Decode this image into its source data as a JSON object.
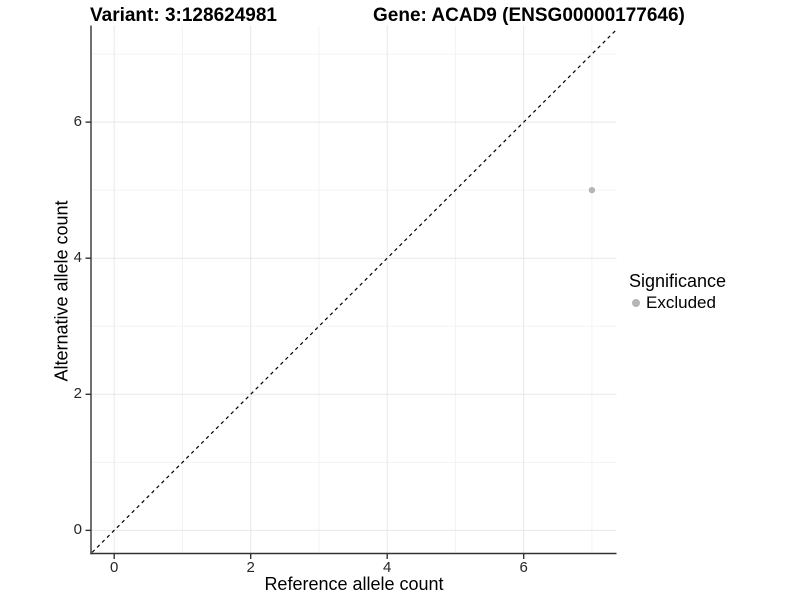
{
  "header": {
    "variant_title": "Variant: 3:128624981",
    "gene_title": "Gene: ACAD9 (ENSG00000177646)"
  },
  "axes": {
    "x": {
      "label": "Reference allele count",
      "tick_labels": [
        "0",
        "2",
        "4",
        "6"
      ]
    },
    "y": {
      "label": "Alternative allele count",
      "tick_labels": [
        "0",
        "2",
        "4",
        "6"
      ]
    }
  },
  "legend": {
    "title": "Significance",
    "items": [
      {
        "label": "Excluded",
        "color": "#b5b5b5",
        "marker": "circle-icon"
      }
    ]
  },
  "colors": {
    "background": "#ffffff",
    "grid_major": "#e8e8e8",
    "grid_minor": "#f3f3f3",
    "axis_line": "#333333",
    "tick_text": "#262626",
    "point": "#b5b5b5",
    "reference_line": "#000000"
  },
  "chart_data": {
    "type": "scatter",
    "title_left": "Variant: 3:128624981",
    "title_right": "Gene: ACAD9 (ENSG00000177646)",
    "xlabel": "Reference allele count",
    "ylabel": "Alternative allele count",
    "xlim": [
      -0.34,
      7.36
    ],
    "ylim": [
      -0.34,
      7.42
    ],
    "x_ticks": [
      0,
      2,
      4,
      6
    ],
    "y_ticks": [
      0,
      2,
      4,
      6
    ],
    "x_minor_gridlines": [
      1,
      3,
      5,
      7
    ],
    "y_minor_gridlines": [
      1,
      3,
      5,
      7
    ],
    "grid": "major+minor",
    "legend_position": "right",
    "series": [
      {
        "name": "Excluded",
        "color": "#b5b5b5",
        "points": [
          {
            "x": 7,
            "y": 5
          }
        ]
      }
    ],
    "reference_line": {
      "style": "dashed",
      "color": "#000000",
      "slope": 1,
      "intercept": 0,
      "description": "y = x identity line"
    }
  }
}
